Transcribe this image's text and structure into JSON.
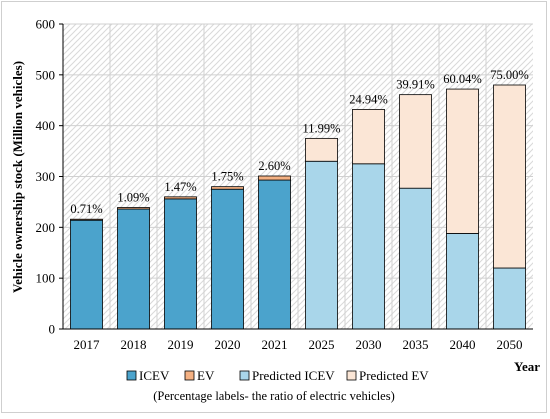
{
  "chart_data": {
    "type": "bar",
    "stacked": true,
    "ylabel": "Vehicle  ownership stock (Million vehicles)",
    "xlabel": "Year",
    "ylim": [
      0,
      600
    ],
    "yticks": [
      0,
      100,
      200,
      300,
      400,
      500,
      600
    ],
    "grid": "hatched plot background",
    "categories": [
      "2017",
      "2018",
      "2019",
      "2020",
      "2021",
      "2025",
      "2030",
      "2035",
      "2040",
      "2050"
    ],
    "series": [
      {
        "name": "ICEV",
        "color": "#4ba3cc",
        "values": [
          214,
          236,
          256,
          275,
          293,
          null,
          null,
          null,
          null,
          null
        ]
      },
      {
        "name": "EV",
        "color": "#f4b183",
        "values": [
          2,
          3,
          4,
          5,
          8,
          null,
          null,
          null,
          null,
          null
        ]
      },
      {
        "name": "Predicted ICEV",
        "color": "#a9d6ea",
        "values": [
          null,
          null,
          null,
          null,
          null,
          330,
          325,
          277,
          188,
          120
        ]
      },
      {
        "name": "Predicted EV",
        "color": "#fbe6d6",
        "values": [
          null,
          null,
          null,
          null,
          null,
          45,
          107,
          184,
          284,
          360
        ]
      }
    ],
    "data_labels": [
      "0.71%",
      "1.09%",
      "1.47%",
      "1.75%",
      "2.60%",
      "11.99%",
      "24.94%",
      "39.91%",
      "60.04%",
      "75.00%"
    ],
    "legend": {
      "placement": "bottom",
      "items": [
        "ICEV",
        "EV",
        "Predicted ICEV",
        "Predicted EV"
      ]
    },
    "caption": "(Percentage labels- the ratio of electric vehicles)"
  }
}
